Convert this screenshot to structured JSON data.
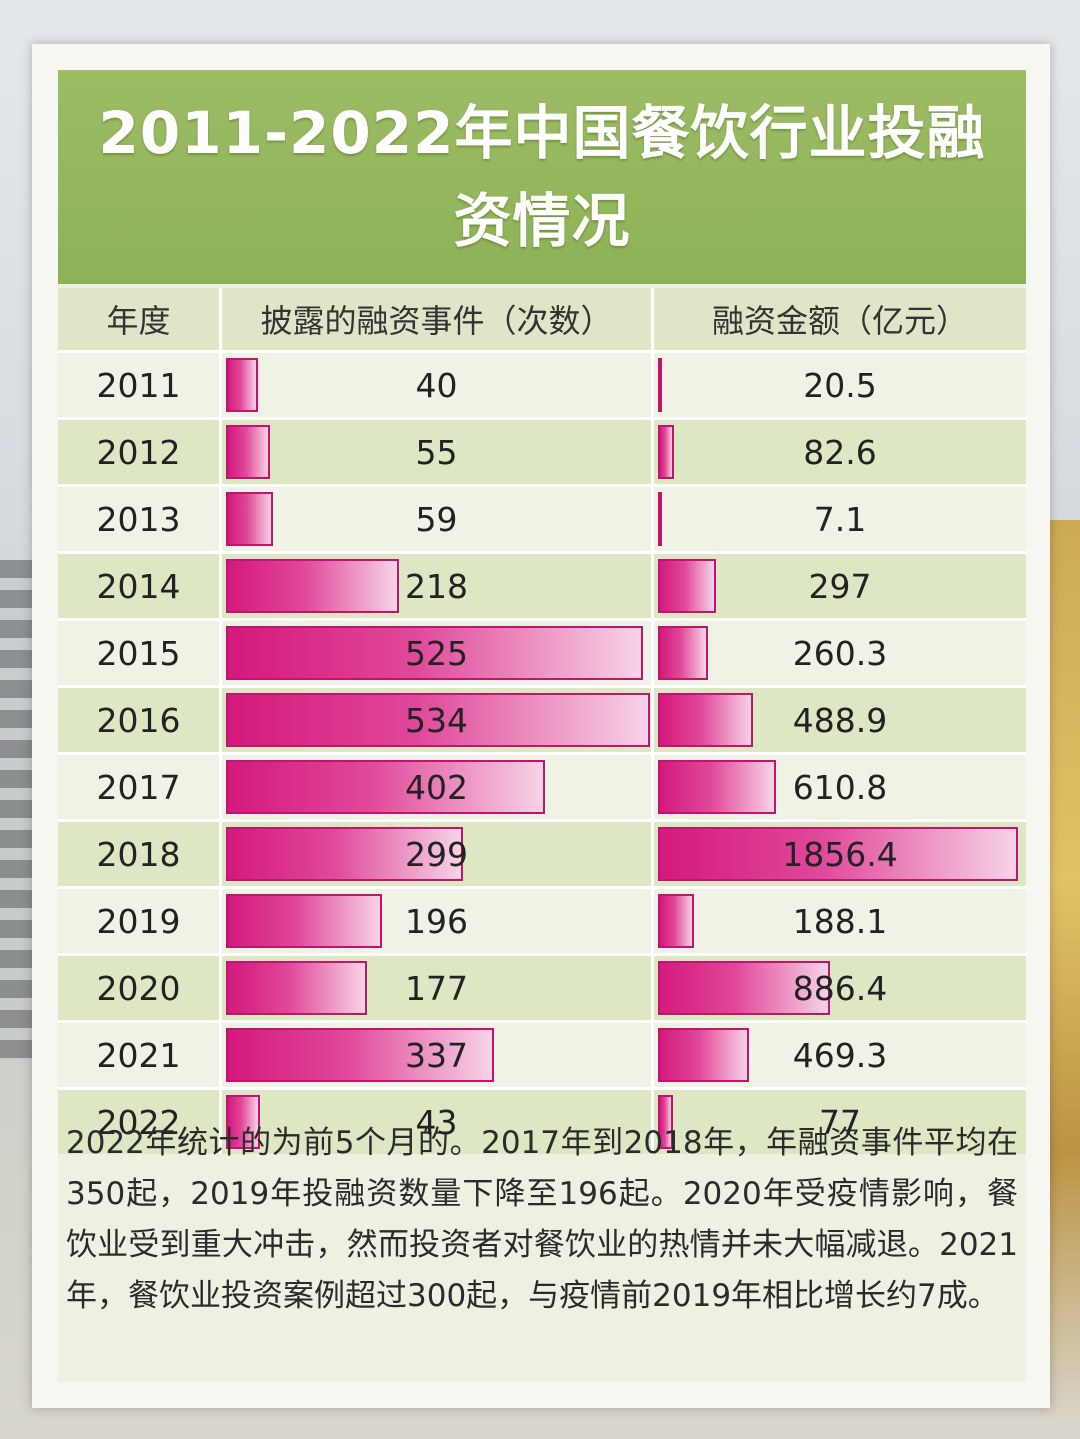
{
  "title": "2011-2022年中国餐饮行业投融资情况",
  "chart_data": {
    "type": "bar",
    "title": "2011-2022年中国餐饮行业投融资情况",
    "columns": [
      "年度",
      "披露的融资事件（次数）",
      "融资金额（亿元）"
    ],
    "categories": [
      "2011",
      "2012",
      "2013",
      "2014",
      "2015",
      "2016",
      "2017",
      "2018",
      "2019",
      "2020",
      "2021",
      "2022"
    ],
    "series": [
      {
        "name": "披露的融资事件（次数）",
        "values": [
          40,
          55,
          59,
          218,
          525,
          534,
          402,
          299,
          196,
          177,
          337,
          43
        ]
      },
      {
        "name": "融资金额（亿元）",
        "values": [
          20.5,
          82.6,
          7.1,
          297,
          260.3,
          488.9,
          610.8,
          1856.4,
          188.1,
          886.4,
          469.3,
          77
        ]
      }
    ],
    "value_labels": {
      "events": [
        "40",
        "55",
        "59",
        "218",
        "525",
        "534",
        "402",
        "299",
        "196",
        "177",
        "337",
        "43"
      ],
      "amount": [
        "20.5",
        "82.6",
        "7.1",
        "297",
        "260.3",
        "488.9",
        "610.8",
        "1856.4",
        "188.1",
        "886.4",
        "469.3",
        "77"
      ]
    },
    "colors": {
      "bar": "#d4197c",
      "header_bg": "#8db256",
      "row_even": "#dde7c4",
      "row_odd": "#f0f2e6"
    }
  },
  "note": "2022年统计的为前5个月的。2017年到2018年，年融资事件平均在350起，2019年投融资数量下降至196起。2020年受疫情影响，餐饮业受到重大冲击，然而投资者对餐饮业的热情并未大幅减退。2021年，餐饮业投资案例超过300起，与疫情前2019年相比增长约7成。"
}
